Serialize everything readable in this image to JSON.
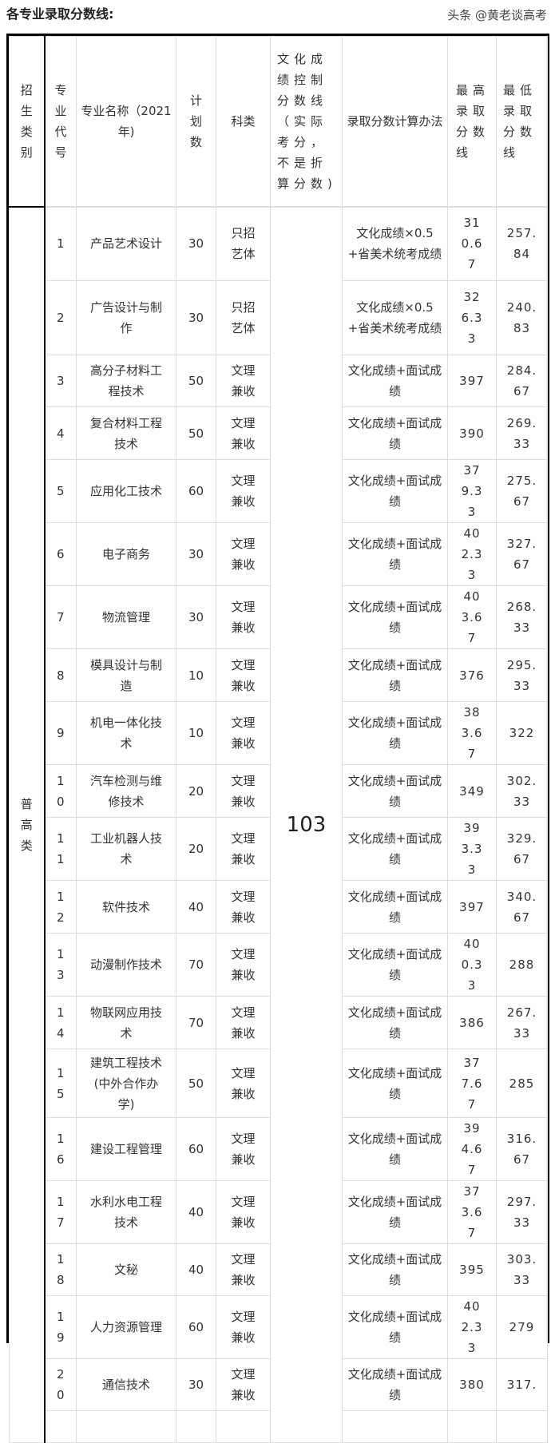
{
  "title": "各专业录取分数线:",
  "headers": [
    "招生类别",
    "专业代号",
    "专业名称（2021年)",
    "计划数",
    "科类",
    "文化成绩控制分数线（实际考分，不是折算分数)",
    "录取分数计算办法",
    "最高录取分数线",
    "最低录取分数线"
  ],
  "category": "普高类",
  "control_score": "103",
  "rows": [
    {
      "code": "1",
      "name": "产品艺术设计",
      "plan": "30",
      "type": "只招艺体",
      "method": "文化成绩×0.5+省美术统考成绩",
      "max": "310.67",
      "min": "257.84"
    },
    {
      "code": "2",
      "name": "广告设计与制作",
      "plan": "30",
      "type": "只招艺体",
      "method": "文化成绩×0.5+省美术统考成绩",
      "max": "326.33",
      "min": "240.83"
    },
    {
      "code": "3",
      "name": "高分子材料工程技术",
      "plan": "50",
      "type": "文理兼收",
      "method": "文化成绩+面试成绩",
      "max": "397",
      "min": "284.67"
    },
    {
      "code": "4",
      "name": "复合材料工程技术",
      "plan": "50",
      "type": "文理兼收",
      "method": "文化成绩+面试成绩",
      "max": "390",
      "min": "269.33"
    },
    {
      "code": "5",
      "name": "应用化工技术",
      "plan": "60",
      "type": "文理兼收",
      "method": "文化成绩+面试成绩",
      "max": "379.33",
      "min": "275.67"
    },
    {
      "code": "6",
      "name": "电子商务",
      "plan": "30",
      "type": "文理兼收",
      "method": "文化成绩+面试成绩",
      "max": "402.33",
      "min": "327.67"
    },
    {
      "code": "7",
      "name": "物流管理",
      "plan": "30",
      "type": "文理兼收",
      "method": "文化成绩+面试成绩",
      "max": "403.67",
      "min": "268.33"
    },
    {
      "code": "8",
      "name": "模具设计与制造",
      "plan": "10",
      "type": "文理兼收",
      "method": "文化成绩+面试成绩",
      "max": "376",
      "min": "295.33"
    },
    {
      "code": "9",
      "name": "机电一体化技术",
      "plan": "10",
      "type": "文理兼收",
      "method": "文化成绩+面试成绩",
      "max": "383.67",
      "min": "322"
    },
    {
      "code": "10",
      "name": "汽车检测与维修技术",
      "plan": "20",
      "type": "文理兼收",
      "method": "文化成绩+面试成绩",
      "max": "349",
      "min": "302.33"
    },
    {
      "code": "11",
      "name": "工业机器人技术",
      "plan": "20",
      "type": "文理兼收",
      "method": "文化成绩+面试成绩",
      "max": "393.33",
      "min": "329.67"
    },
    {
      "code": "12",
      "name": "软件技术",
      "plan": "40",
      "type": "文理兼收",
      "method": "文化成绩+面试成绩",
      "max": "397",
      "min": "340.67"
    },
    {
      "code": "13",
      "name": "动漫制作技术",
      "plan": "70",
      "type": "文理兼收",
      "method": "文化成绩+面试成绩",
      "max": "400.33",
      "min": "288"
    },
    {
      "code": "14",
      "name": "物联网应用技术",
      "plan": "70",
      "type": "文理兼收",
      "method": "文化成绩+面试成绩",
      "max": "386",
      "min": "267.33"
    },
    {
      "code": "15",
      "name": "建筑工程技术(中外合作办学)",
      "plan": "50",
      "type": "文理兼收",
      "method": "文化成绩+面试成绩",
      "max": "377.67",
      "min": "285"
    },
    {
      "code": "16",
      "name": "建设工程管理",
      "plan": "60",
      "type": "文理兼收",
      "method": "文化成绩+面试成绩",
      "max": "394.67",
      "min": "316.67"
    },
    {
      "code": "17",
      "name": "水利水电工程技术",
      "plan": "40",
      "type": "文理兼收",
      "method": "文化成绩+面试成绩",
      "max": "373.67",
      "min": "297.33"
    },
    {
      "code": "18",
      "name": "文秘",
      "plan": "40",
      "type": "文理兼收",
      "method": "文化成绩+面试成绩",
      "max": "395",
      "min": "303.33"
    },
    {
      "code": "19",
      "name": "人力资源管理",
      "plan": "60",
      "type": "文理兼收",
      "method": "文化成绩+面试成绩",
      "max": "402.33",
      "min": "279"
    },
    {
      "code": "20",
      "name": "通信技术",
      "plan": "30",
      "type": "文理兼收",
      "method": "文化成绩+面试成绩",
      "max": "380",
      "min": "317."
    }
  ],
  "watermark": "头条 @黄老谈高考"
}
